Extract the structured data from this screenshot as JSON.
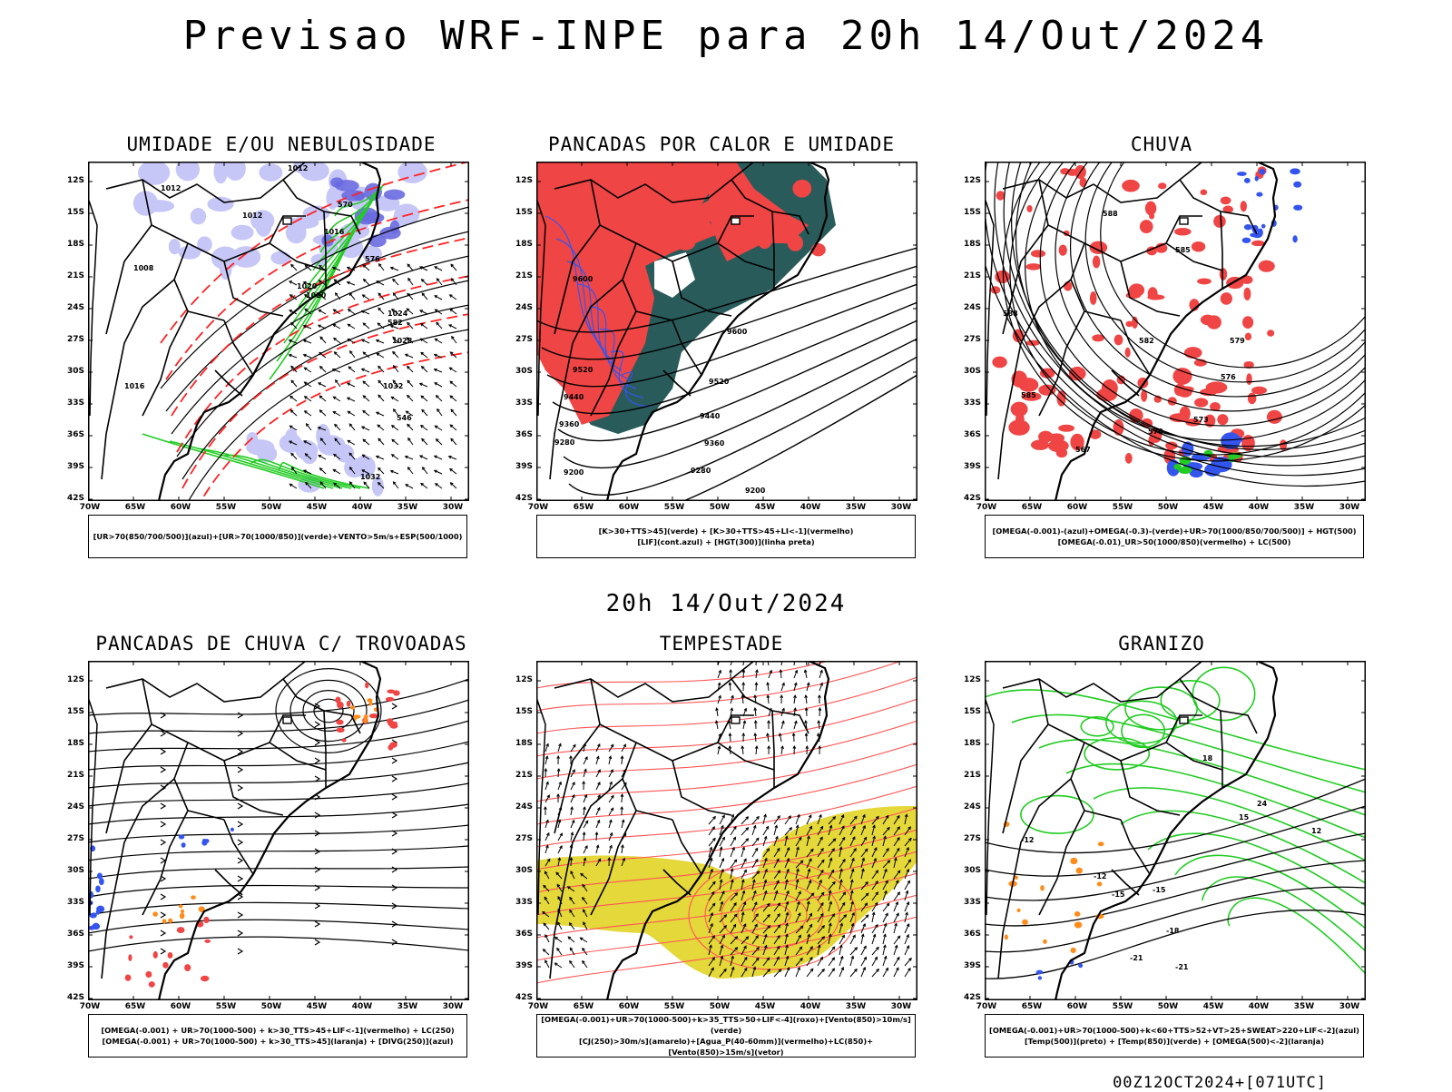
{
  "main_title": "Previsao WRF-INPE  para 20h 14/Out/2024",
  "mid_title": "20h 14/Out/2024",
  "footer": "00Z12OCT2024+[071UTC]",
  "axes": {
    "lat_labels": [
      "12S",
      "15S",
      "18S",
      "21S",
      "24S",
      "27S",
      "30S",
      "33S",
      "36S",
      "39S",
      "42S"
    ],
    "lon_labels": [
      "70W",
      "65W",
      "60W",
      "55W",
      "50W",
      "45W",
      "40W",
      "35W",
      "30W"
    ]
  },
  "panels": [
    {
      "id": "umidade",
      "title": "UMIDADE E/OU NEBULOSIDADE",
      "caption": [
        "[UR>70(850/700/500)](azul)+[UR>70(1000/850)](verde)+VENTO>5m/s+ESP(500/1000)"
      ],
      "contour_labels": [
        "1012",
        "1012",
        "1012",
        "1016",
        "1020",
        "1020",
        "1024",
        "1028",
        "1032",
        "1032",
        "1016",
        "1008",
        "570",
        "576",
        "582",
        "546"
      ]
    },
    {
      "id": "pancadas-calor",
      "title": "PANCADAS POR CALOR E UMIDADE",
      "caption": [
        "[K>30+TTS>45](verde) + [K>30+TTS>45+LI<-1](vermelho)",
        "[LIF](cont.azul) + [HGT(300)](linha preta)"
      ],
      "contour_labels": [
        "9600",
        "9520",
        "9440",
        "9360",
        "9280",
        "9200",
        "9600",
        "9520",
        "9440",
        "9360",
        "9280",
        "9200"
      ]
    },
    {
      "id": "chuva",
      "title": "CHUVA",
      "caption": [
        "[OMEGA(-0.001)-(azul)+OMEGA(-0.3)-(verde)+UR>70(1000/850/700/500)] + HGT(500)",
        "[OMEGA(-0.01)_UR>50(1000/850)(vermelho) + LC(500)"
      ],
      "contour_labels": [
        "588",
        "585",
        "582",
        "579",
        "576",
        "573",
        "570",
        "567",
        "588",
        "585"
      ]
    },
    {
      "id": "trovoadas",
      "title": "PANCADAS DE CHUVA C/ TROVOADAS",
      "caption": [
        "[OMEGA(-0.001) + UR>70(1000-500) + k>30_TTS>45+LIF<-1](vermelho) + LC(250)",
        "[OMEGA(-0.001) + UR>70(1000-500) + k>30_TTS>45](laranja) + [DIVG(250)](azul)"
      ],
      "contour_labels": []
    },
    {
      "id": "tempestade",
      "title": "TEMPESTADE",
      "caption": [
        "[OMEGA(-0.001)+UR>70(1000-500)+k>35_TTS>50+LIF<-4](roxo)+[Vento(850)>10m/s](verde)",
        "[CJ(250)>30m/s](amarelo)+[Agua_P(40-60mm)](vermelho)+LC(850)+[Vento(850)>15m/s](vetor)"
      ],
      "contour_labels": []
    },
    {
      "id": "granizo",
      "title": "GRANIZO",
      "caption": [
        "[OMEGA(-0.001)+UR>70(1000-500)+k<60+TTS>52+VT>25+SWEAT>220+LIF<-2](azul)",
        "[Temp(500)](preto) + [Temp(850)](verde) + [OMEGA(500)<-2](laranja)"
      ],
      "contour_labels": [
        "-12",
        "-15",
        "-18",
        "-21",
        "15",
        "12",
        "18",
        "24",
        "-12",
        "-15",
        "-21"
      ]
    }
  ]
}
